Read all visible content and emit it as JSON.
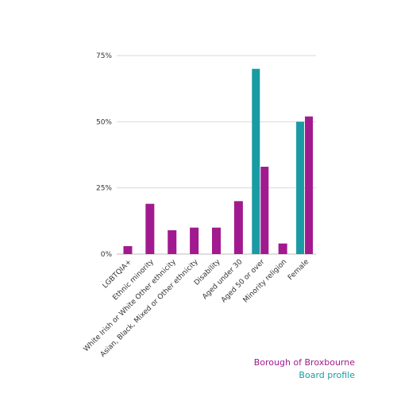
{
  "chart_data": {
    "type": "bar",
    "title": "",
    "xlabel": "",
    "ylabel": "",
    "ylim": [
      0,
      75
    ],
    "yticks": [
      "0%",
      "25%",
      "50%",
      "75%"
    ],
    "grid": true,
    "legend_position": "bottom-right",
    "categories": [
      "LGBTQIA+",
      "Ethnic minority",
      "White Irish or White Other ethnicity",
      "Asian, Black, Mixed or Other ethnicity",
      "Disability",
      "Aged under 30",
      "Aged 50 or over",
      "Minority religion",
      "Female"
    ],
    "series": [
      {
        "name": "Board profile",
        "color": "#1a9ba3",
        "values": [
          null,
          null,
          null,
          null,
          null,
          null,
          70,
          null,
          50
        ]
      },
      {
        "name": "Borough of Broxbourne",
        "color": "#a21a8f",
        "values": [
          3,
          19,
          9,
          10,
          10,
          20,
          33,
          4,
          52
        ]
      }
    ]
  },
  "legend": {
    "borough": "Borough of Broxbourne",
    "board": "Board profile",
    "borough_color": "#a21a8f",
    "board_color": "#1a9ba3"
  }
}
